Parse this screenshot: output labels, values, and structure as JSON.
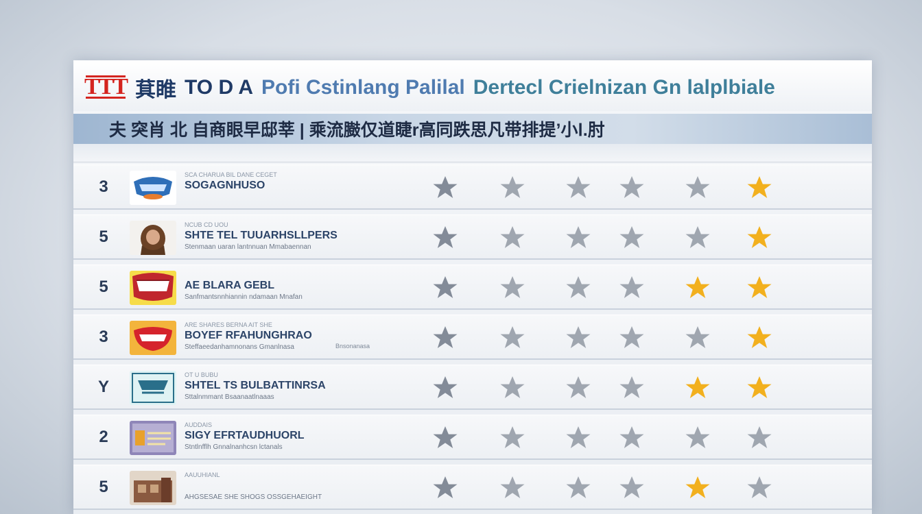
{
  "header": {
    "logo_text": "TTT",
    "title_parts": [
      {
        "text": "萁睢",
        "style": "dark"
      },
      {
        "text": "TO D A",
        "style": "dark"
      },
      {
        "text": "Pofi Cstinlang Palilal",
        "style": "blue"
      },
      {
        "text": "Dertecl Crielnizan Gn lalplbiale",
        "style": "teal"
      }
    ],
    "subtitle": "夫 突肖  北 自商眼早邸莘 | 乘流臌仅道睫r高同跌思凡带排提’小Ⅰ.肘"
  },
  "colors": {
    "star_gray": "#7c8592",
    "star_gold": "#f2b01e",
    "title_dark": "#1f3a66",
    "title_blue": "#4f7bb0"
  },
  "rows": [
    {
      "rank": "3",
      "thumb": "blue-teeth-badge",
      "tiny": "SCA CHARUA BIL DANE CEGET",
      "name": "SOGAGNHUSO",
      "desc": "",
      "extra": "",
      "stars": [
        "gray",
        "gray",
        "gray",
        "gray",
        "gray",
        "gold"
      ]
    },
    {
      "rank": "5",
      "thumb": "portrait",
      "tiny": "NCUB  CD  UOU",
      "name": "SHTE TEL TUUARHSLLPERS",
      "desc": "Stenmaan uaran lantnnuan Mmabaennan",
      "extra": "",
      "stars": [
        "gray",
        "gray",
        "gray",
        "gray",
        "gray",
        "gold"
      ]
    },
    {
      "rank": "5",
      "thumb": "smile-red",
      "tiny": "",
      "name": "AE BLARA GEBL",
      "desc": "Sanfmantsnnhiannin ndamaan  Mnafan",
      "extra": "",
      "stars": [
        "gray",
        "gray",
        "gray",
        "gray",
        "gold",
        "gold"
      ]
    },
    {
      "rank": "3",
      "thumb": "smile-yellow",
      "tiny": "ARE SHARES BERNA AIT SHE",
      "name": "BOYEF RFAHUNGHRAO",
      "desc": "Steffaeedanhamnonans  Gmanlnasa",
      "extra": "Bnsonanasa",
      "stars": [
        "gray",
        "gray",
        "gray",
        "gray",
        "gray",
        "gold"
      ]
    },
    {
      "rank": "Y",
      "thumb": "logo-card",
      "tiny": "OT U BUBU",
      "name": "SHTEL TS BULBATTINRSA",
      "desc": "Sttalnmmant Bsaanaatlnaaas",
      "extra": "",
      "stars": [
        "gray",
        "gray",
        "gray",
        "gray",
        "gold",
        "gold"
      ]
    },
    {
      "rank": "2",
      "thumb": "card-purple",
      "tiny": "AUDDAIS",
      "name": "SIGY EFRTAUDHUORL",
      "desc": "Stntlnfflh Gnnalnanhcsn lctanals",
      "extra": "",
      "stars": [
        "gray",
        "gray",
        "gray",
        "gray",
        "gray",
        "gray"
      ]
    },
    {
      "rank": "5",
      "thumb": "building",
      "tiny": "AAUUHIANL",
      "name": "",
      "desc": "AHGSESAE SHE SHOGS OSSGEHAEIGHT",
      "extra": "",
      "stars": [
        "gray",
        "gray",
        "gray",
        "gray",
        "gold",
        "gray"
      ]
    }
  ]
}
